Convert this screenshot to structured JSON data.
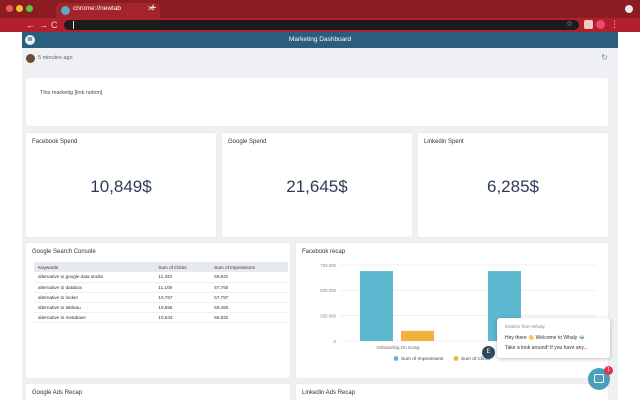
{
  "browser": {
    "tab_title": "chrome://newtab",
    "close_glyph": "✕",
    "new_tab_glyph": "+",
    "nav_back": "←",
    "nav_forward": "→",
    "nav_reload": "C",
    "star_glyph": "☆",
    "kebab_glyph": "⋮",
    "theme_color": "#8b1d22"
  },
  "app": {
    "title": "Marketing Dashboard",
    "logo_text": "W",
    "header_color": "#2a5e7c"
  },
  "dashboard": {
    "updated": "5 minutes ago",
    "refresh_glyph": "↻",
    "note": "This marketig [link notion]"
  },
  "kpis": [
    {
      "title": "Facebook Spend",
      "value": "10,849$"
    },
    {
      "title": "Google Spend",
      "value": "21,645$"
    },
    {
      "title": "Linkedin Spent",
      "value": "6,285$"
    }
  ],
  "google_search_console": {
    "title": "Google Search Console",
    "columns": [
      "Keywords",
      "Sum of Clicks",
      "Sum of Impressions"
    ],
    "rows": [
      [
        "alternative to google data studio",
        "11,333",
        "59,831"
      ],
      [
        "alternative to databox",
        "11,108",
        "57,750"
      ],
      [
        "alternative to looker",
        "10,767",
        "57,797"
      ],
      [
        "alternative to tableau",
        "10,656",
        "59,450"
      ],
      [
        "alternative to metabase",
        "10,643",
        "56,832"
      ]
    ]
  },
  "facebook_recap": {
    "title": "Facebook recap"
  },
  "chart_data": {
    "type": "bar",
    "title": "Facebook recap",
    "categories": [
      "Onboarding On Going",
      ""
    ],
    "series": [
      {
        "name": "Sum of Impressions",
        "values": [
          690000,
          690000
        ],
        "color": "#5bb8cf"
      },
      {
        "name": "Sum of Clicks",
        "values": [
          100000,
          null
        ],
        "color": "#f2b13c"
      }
    ],
    "ylim": [
      0,
      750000
    ],
    "yticks": [
      0,
      250000,
      500000,
      750000
    ],
    "ytick_labels": [
      "0",
      "250,000",
      "500,000",
      "750,000"
    ],
    "grid": true,
    "legend": "bottom"
  },
  "bottom_cards": {
    "google_ads": "Google Ads Recap",
    "linkedin_ads": "Linkedin Ads Recap"
  },
  "chat": {
    "from": "Ibrahim from Whaly",
    "line1": "Hey there 👋 Welcome to Whaly 🐳",
    "line2": "Take a look around! If you have any...",
    "agent_initial": "E",
    "badge": "1"
  }
}
